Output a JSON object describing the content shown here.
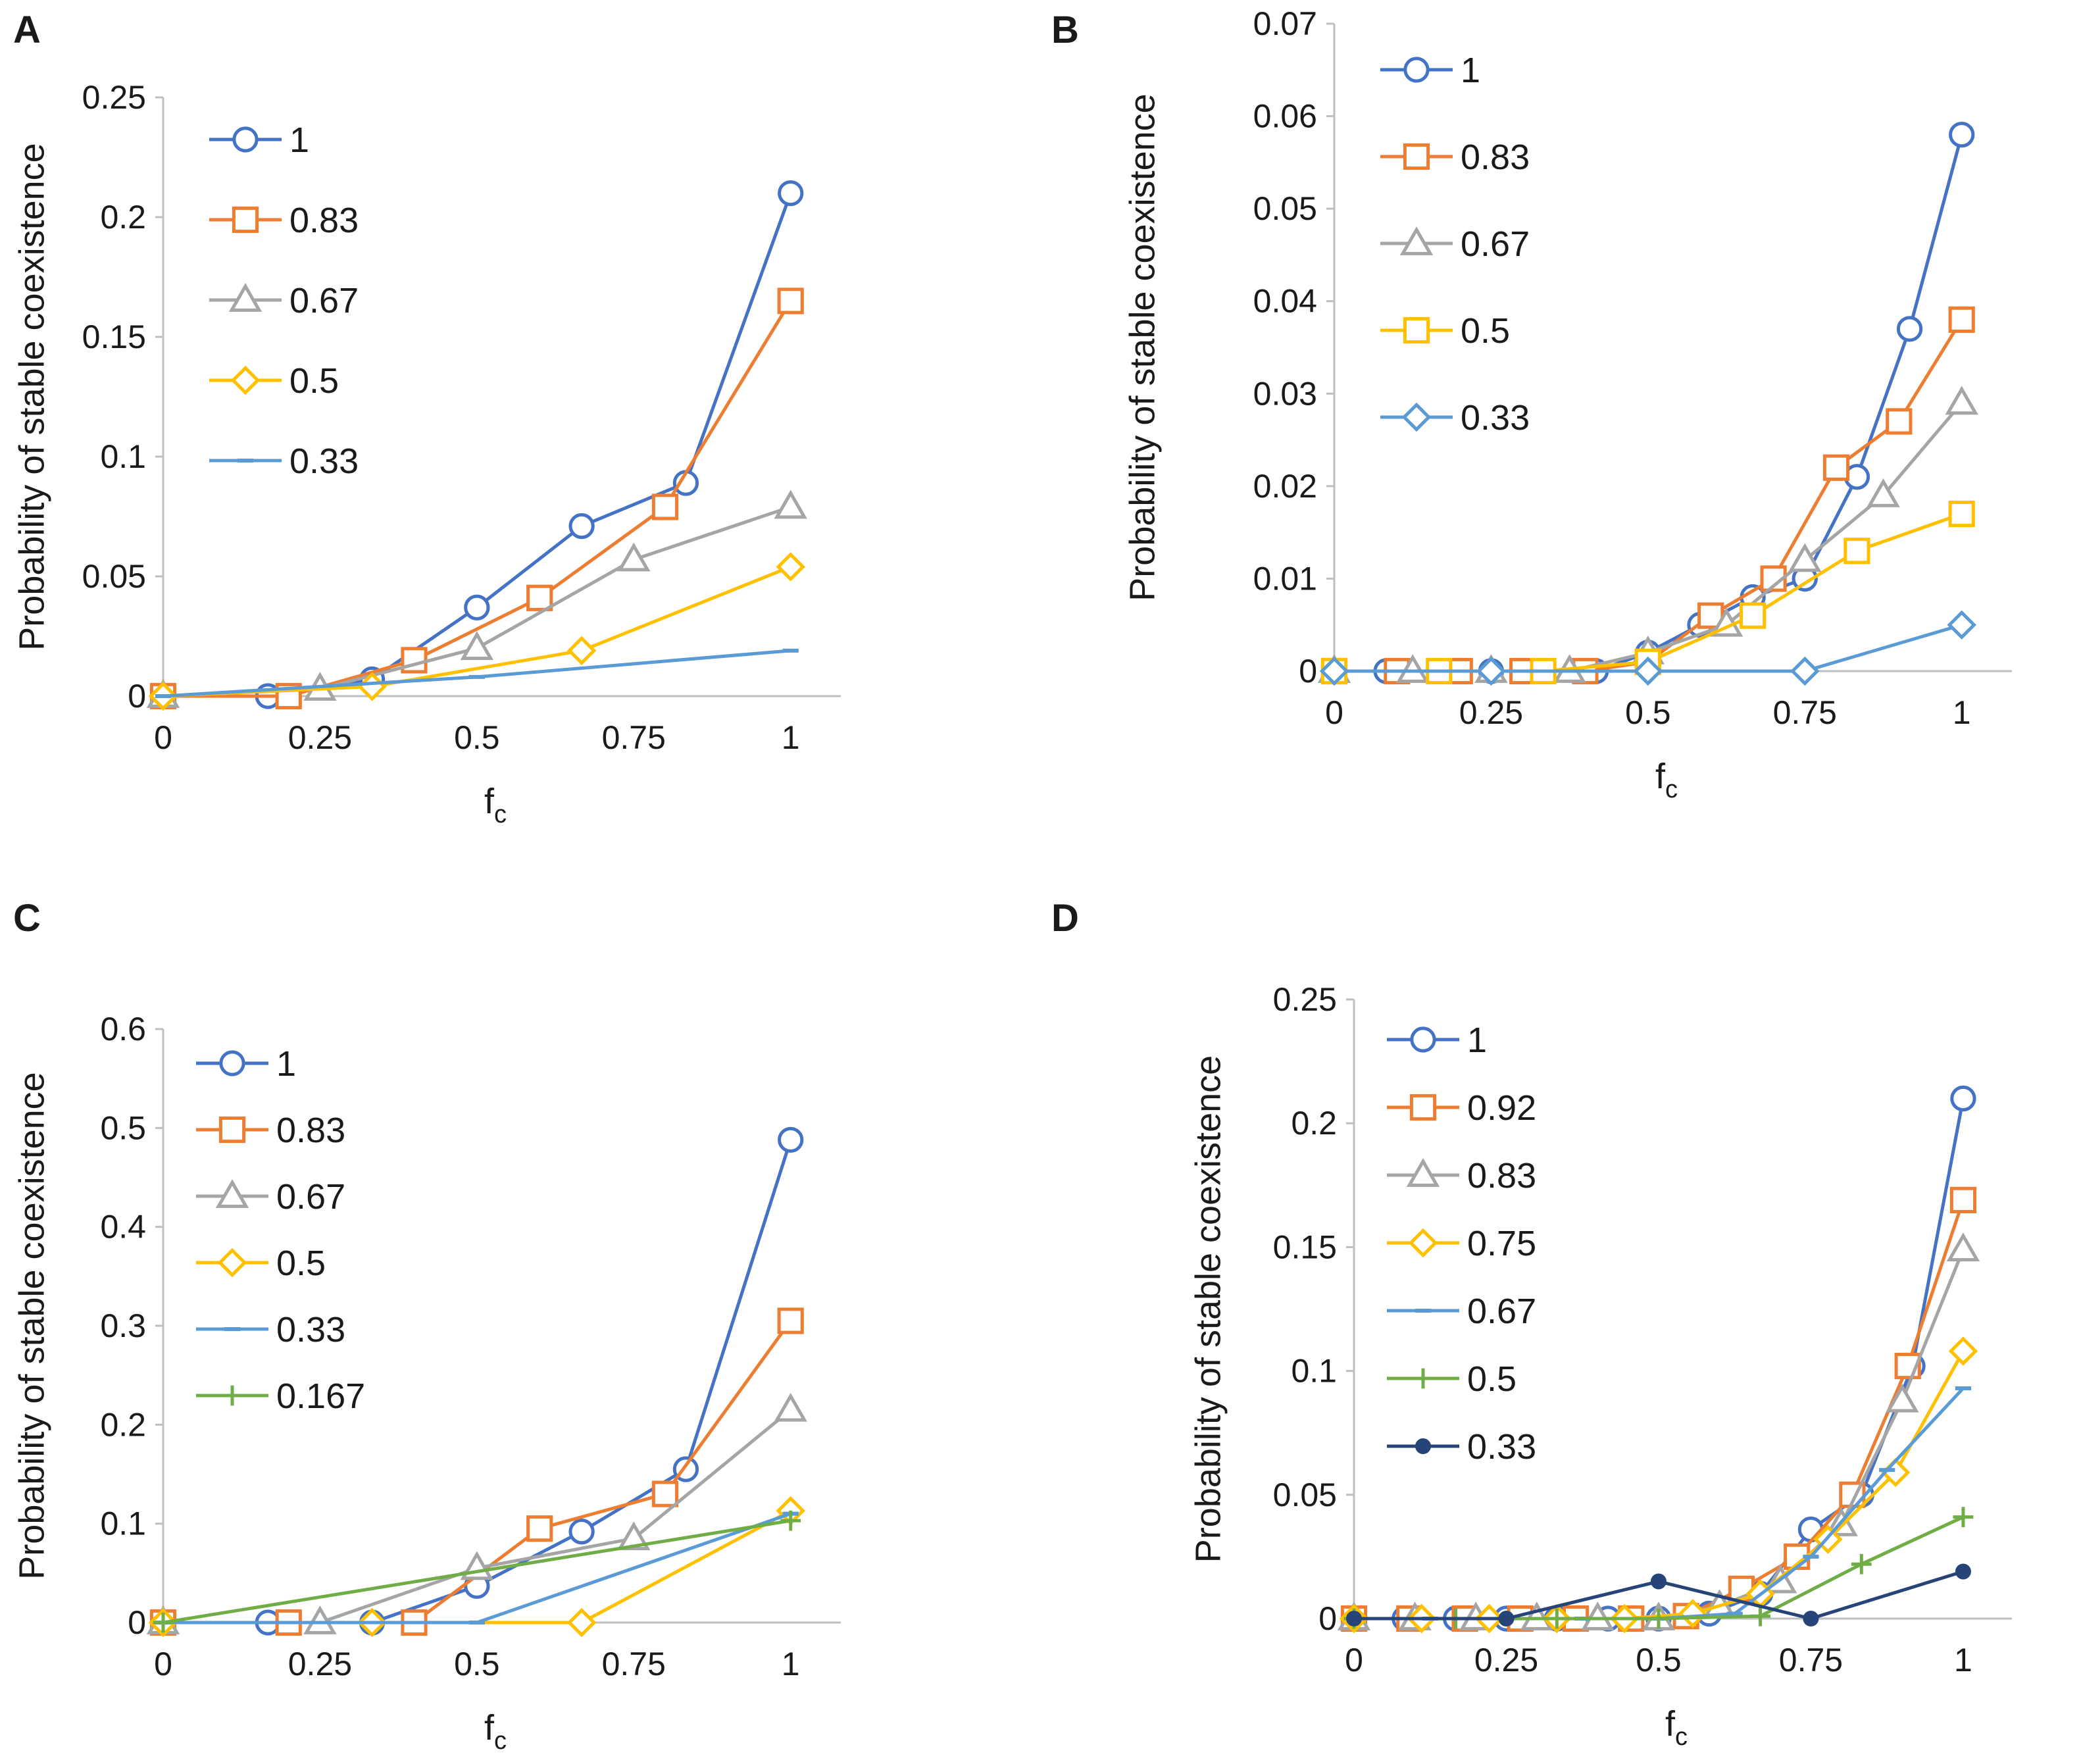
{
  "figure": {
    "colors": {
      "s1": "#4472C4",
      "s2": "#ED7D31",
      "s3": "#A5A5A5",
      "s4": "#FFC000",
      "s5": "#5B9BD5",
      "s6": "#70AD47",
      "s7": "#264478",
      "axis": "#bfbfbf",
      "text": "#1a1a1a"
    }
  },
  "chart_data": [
    {
      "panel": "A",
      "type": "line",
      "xlabel": "f",
      "xlabel_sub": "c",
      "ylabel": "Probability of stable coexistence",
      "xlim": [
        0,
        1.08
      ],
      "ylim": [
        0,
        0.25
      ],
      "xticks": [
        0,
        0.25,
        0.5,
        0.75,
        1
      ],
      "xtick_labels": [
        "0",
        "0.25",
        "0.5",
        "0.75",
        "1"
      ],
      "yticks": [
        0,
        0.05,
        0.1,
        0.15,
        0.2,
        0.25
      ],
      "ytick_labels": [
        "0",
        "0.05",
        "0.1",
        "0.15",
        "0.2",
        "0.25"
      ],
      "legend_position": "top-left",
      "series": [
        {
          "name": "1",
          "marker": "circle",
          "color": "#4472C4",
          "x": [
            0,
            0.167,
            0.333,
            0.5,
            0.667,
            0.833,
            1
          ],
          "y": [
            0,
            0,
            0.007,
            0.037,
            0.071,
            0.089,
            0.21
          ]
        },
        {
          "name": "0.83",
          "marker": "square",
          "color": "#ED7D31",
          "x": [
            0,
            0.2,
            0.4,
            0.6,
            0.8,
            1
          ],
          "y": [
            0,
            0,
            0.015,
            0.041,
            0.079,
            0.165
          ]
        },
        {
          "name": "0.67",
          "marker": "triangle",
          "color": "#A5A5A5",
          "x": [
            0,
            0.25,
            0.5,
            0.75,
            1
          ],
          "y": [
            0,
            0.003,
            0.02,
            0.057,
            0.079
          ]
        },
        {
          "name": "0.5",
          "marker": "diamond",
          "color": "#FFC000",
          "x": [
            0,
            0.333,
            0.667,
            1
          ],
          "y": [
            0,
            0.004,
            0.019,
            0.054
          ]
        },
        {
          "name": "0.33",
          "marker": "dash",
          "color": "#5B9BD5",
          "x": [
            0,
            0.5,
            1
          ],
          "y": [
            0,
            0.008,
            0.019
          ]
        }
      ]
    },
    {
      "panel": "B",
      "type": "line",
      "xlabel": "f",
      "xlabel_sub": "c",
      "ylabel": "Probability of stable coexistence",
      "xlim": [
        0,
        1.08
      ],
      "ylim": [
        0,
        0.07
      ],
      "xticks": [
        0,
        0.25,
        0.5,
        0.75,
        1
      ],
      "xtick_labels": [
        "0",
        "0.25",
        "0.5",
        "0.75",
        "1"
      ],
      "yticks": [
        0,
        0.01,
        0.02,
        0.03,
        0.04,
        0.05,
        0.06,
        0.07
      ],
      "ytick_labels": [
        "0",
        "0.01",
        "0.02",
        "0.03",
        "0.04",
        "0.05",
        "0.06",
        "0.07"
      ],
      "legend_position": "top-left",
      "series": [
        {
          "name": "1",
          "marker": "circle",
          "color": "#4472C4",
          "x": [
            0,
            0.083,
            0.167,
            0.25,
            0.333,
            0.417,
            0.5,
            0.583,
            0.667,
            0.75,
            0.833,
            0.917,
            1
          ],
          "y": [
            0,
            0,
            0,
            0,
            0,
            0,
            0.002,
            0.005,
            0.008,
            0.01,
            0.021,
            0.037,
            0.058
          ]
        },
        {
          "name": "0.83",
          "marker": "square",
          "color": "#ED7D31",
          "x": [
            0,
            0.1,
            0.2,
            0.3,
            0.4,
            0.5,
            0.6,
            0.7,
            0.8,
            0.9,
            1
          ],
          "y": [
            0,
            0,
            0,
            0,
            0,
            0.001,
            0.006,
            0.01,
            0.022,
            0.027,
            0.038
          ]
        },
        {
          "name": "0.67",
          "marker": "triangle",
          "color": "#A5A5A5",
          "x": [
            0,
            0.125,
            0.25,
            0.375,
            0.5,
            0.625,
            0.75,
            0.875,
            1
          ],
          "y": [
            0,
            0,
            0,
            0,
            0.002,
            0.005,
            0.012,
            0.019,
            0.029
          ]
        },
        {
          "name": "0.5",
          "marker": "square",
          "color": "#FFC000",
          "x": [
            0,
            0.167,
            0.333,
            0.5,
            0.667,
            0.833,
            1
          ],
          "y": [
            0,
            0,
            0,
            0.001,
            0.006,
            0.013,
            0.017
          ]
        },
        {
          "name": "0.33",
          "marker": "diamond",
          "color": "#5B9BD5",
          "x": [
            0,
            0.25,
            0.5,
            0.75,
            1
          ],
          "y": [
            0,
            0,
            0,
            0,
            0.005
          ]
        }
      ]
    },
    {
      "panel": "C",
      "type": "line",
      "xlabel": "f",
      "xlabel_sub": "c",
      "ylabel": "Probability of stable coexistence",
      "xlim": [
        0,
        1.08
      ],
      "ylim": [
        0,
        0.6
      ],
      "xticks": [
        0,
        0.25,
        0.5,
        0.75,
        1
      ],
      "xtick_labels": [
        "0",
        "0.25",
        "0.5",
        "0.75",
        "1"
      ],
      "yticks": [
        0,
        0.1,
        0.2,
        0.3,
        0.4,
        0.5,
        0.6
      ],
      "ytick_labels": [
        "0",
        "0.1",
        "0.2",
        "0.3",
        "0.4",
        "0.5",
        "0.6"
      ],
      "legend_position": "top-left",
      "series": [
        {
          "name": "1",
          "marker": "circle",
          "color": "#4472C4",
          "x": [
            0,
            0.167,
            0.333,
            0.5,
            0.667,
            0.833,
            1
          ],
          "y": [
            0,
            0,
            0,
            0.037,
            0.092,
            0.155,
            0.488
          ]
        },
        {
          "name": "0.83",
          "marker": "square",
          "color": "#ED7D31",
          "x": [
            0,
            0.2,
            0.4,
            0.6,
            0.8,
            1
          ],
          "y": [
            0,
            0,
            0,
            0.095,
            0.13,
            0.305
          ]
        },
        {
          "name": "0.67",
          "marker": "triangle",
          "color": "#A5A5A5",
          "x": [
            0,
            0.25,
            0.5,
            0.75,
            1
          ],
          "y": [
            0,
            0,
            0.055,
            0.085,
            0.215
          ]
        },
        {
          "name": "0.5",
          "marker": "diamond",
          "color": "#FFC000",
          "x": [
            0,
            0.333,
            0.667,
            1
          ],
          "y": [
            0,
            0,
            0,
            0.113
          ]
        },
        {
          "name": "0.33",
          "marker": "dash",
          "color": "#5B9BD5",
          "x": [
            0,
            0.5,
            1
          ],
          "y": [
            0,
            0,
            0.11
          ]
        },
        {
          "name": "0.167",
          "marker": "plus",
          "color": "#70AD47",
          "x": [
            0,
            1
          ],
          "y": [
            0,
            0.103
          ]
        }
      ]
    },
    {
      "panel": "D",
      "type": "line",
      "xlabel": "f",
      "xlabel_sub": "c",
      "ylabel": "Probability of stable coexistence",
      "xlim": [
        0,
        1.08
      ],
      "ylim": [
        0,
        0.25
      ],
      "xticks": [
        0,
        0.25,
        0.5,
        0.75,
        1
      ],
      "xtick_labels": [
        "0",
        "0.25",
        "0.5",
        "0.75",
        "1"
      ],
      "yticks": [
        0,
        0.05,
        0.1,
        0.15,
        0.2,
        0.25
      ],
      "ytick_labels": [
        "0",
        "0.05",
        "0.1",
        "0.15",
        "0.2",
        "0.25"
      ],
      "legend_position": "top-left",
      "series": [
        {
          "name": "1",
          "marker": "circle",
          "color": "#4472C4",
          "x": [
            0,
            0.083,
            0.167,
            0.25,
            0.333,
            0.417,
            0.5,
            0.583,
            0.667,
            0.75,
            0.833,
            0.917,
            1
          ],
          "y": [
            0,
            0,
            0,
            0,
            0,
            0,
            0,
            0.002,
            0.01,
            0.036,
            0.05,
            0.102,
            0.21
          ]
        },
        {
          "name": "0.92",
          "marker": "square",
          "color": "#ED7D31",
          "x": [
            0,
            0.091,
            0.182,
            0.273,
            0.364,
            0.455,
            0.545,
            0.636,
            0.727,
            0.818,
            0.909,
            1
          ],
          "y": [
            0,
            0,
            0,
            0,
            0,
            0,
            0.001,
            0.012,
            0.025,
            0.05,
            0.102,
            0.169
          ]
        },
        {
          "name": "0.83",
          "marker": "triangle",
          "color": "#A5A5A5",
          "x": [
            0,
            0.1,
            0.2,
            0.3,
            0.4,
            0.5,
            0.6,
            0.7,
            0.8,
            0.9,
            1
          ],
          "y": [
            0,
            0,
            0,
            0,
            0,
            0,
            0.005,
            0.015,
            0.038,
            0.088,
            0.149
          ]
        },
        {
          "name": "0.75",
          "marker": "diamond",
          "color": "#FFC000",
          "x": [
            0,
            0.111,
            0.222,
            0.333,
            0.444,
            0.556,
            0.667,
            0.778,
            0.889,
            1
          ],
          "y": [
            0,
            0,
            0,
            0,
            0,
            0.002,
            0.01,
            0.032,
            0.059,
            0.108
          ]
        },
        {
          "name": "0.67",
          "marker": "dash",
          "color": "#5B9BD5",
          "x": [
            0,
            0.125,
            0.25,
            0.375,
            0.5,
            0.625,
            0.75,
            0.875,
            1
          ],
          "y": [
            0,
            0,
            0,
            0,
            0,
            0.002,
            0.025,
            0.06,
            0.093
          ]
        },
        {
          "name": "0.5",
          "marker": "plus",
          "color": "#70AD47",
          "x": [
            0,
            0.167,
            0.333,
            0.5,
            0.667,
            0.833,
            1
          ],
          "y": [
            0,
            0,
            0,
            0,
            0.001,
            0.022,
            0.041
          ]
        },
        {
          "name": "0.33",
          "marker": "dot",
          "color": "#264478",
          "x": [
            0,
            0.25,
            0.5,
            0.75,
            1
          ],
          "y": [
            0,
            0,
            0.015,
            0,
            0.019
          ]
        }
      ]
    }
  ]
}
